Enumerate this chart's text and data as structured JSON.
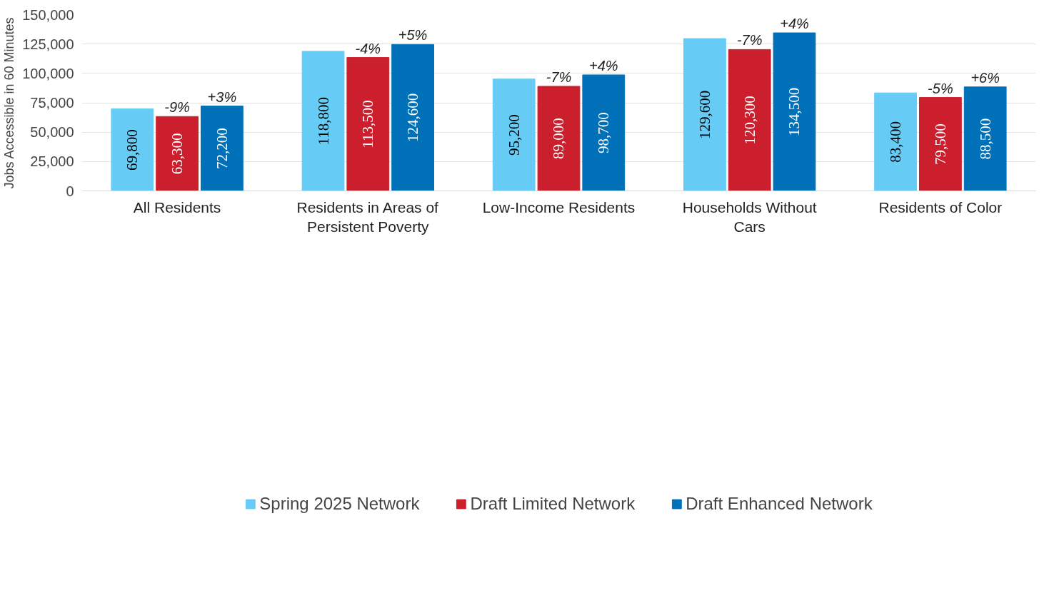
{
  "chart_data": {
    "type": "bar",
    "ylabel": "Jobs Accessible in 60 Minutes",
    "categories": [
      "All Residents",
      "Residents in Areas of Persistent Poverty",
      "Low-Income Residents",
      "Households Without Cars",
      "Residents of Color"
    ],
    "series": [
      {
        "name": "Spring 2025 Network",
        "color": "#66ccf5",
        "values": [
          69800,
          118800,
          95200,
          129600,
          83400
        ],
        "value_labels": [
          "69,800",
          "118,800",
          "95,200",
          "129,600",
          "83,400"
        ]
      },
      {
        "name": "Draft Limited Network",
        "color": "#cc1f2e",
        "values": [
          63300,
          113500,
          89000,
          120300,
          79500
        ],
        "value_labels": [
          "63,300",
          "113,500",
          "89,000",
          "120,300",
          "79,500"
        ]
      },
      {
        "name": "Draft Enhanced Network",
        "color": "#0070b8",
        "values": [
          72200,
          124600,
          98700,
          134500,
          88500
        ],
        "value_labels": [
          "72,200",
          "124,600",
          "98,700",
          "134,500",
          "88,500"
        ]
      }
    ],
    "ylim": [
      0,
      150000
    ],
    "yticks": [
      {
        "value": 0,
        "label": "0"
      },
      {
        "value": 25000,
        "label": "25,000"
      },
      {
        "value": 50000,
        "label": "50,000"
      },
      {
        "value": 75000,
        "label": "75,000"
      },
      {
        "value": 100000,
        "label": "100,000"
      },
      {
        "value": 125000,
        "label": "125,000"
      },
      {
        "value": 150000,
        "label": "150,000"
      }
    ],
    "grid": "y",
    "legend": "bottom",
    "annotations": [
      "-9%",
      "+3%",
      "-4%",
      "+5%",
      "-7%",
      "+4%",
      "-7%",
      "+4%",
      "-5%",
      "+6%"
    ]
  }
}
